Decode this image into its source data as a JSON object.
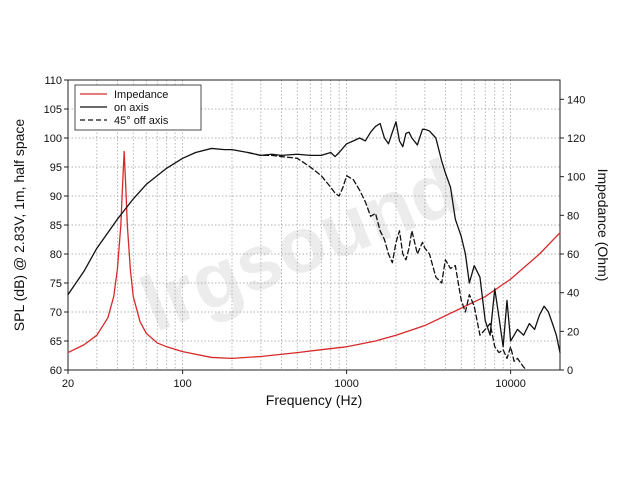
{
  "chart_data": {
    "type": "line",
    "xlabel": "Frequency (Hz)",
    "ylabel": "SPL (dB) @ 2.83V, 1m, half space",
    "y2label": "Impedance (Ohm)",
    "xscale": "log",
    "xlim": [
      20,
      20000
    ],
    "ylim": [
      60,
      110
    ],
    "y2lim": [
      0,
      150
    ],
    "xticks": [
      20,
      100,
      1000,
      10000
    ],
    "xtick_labels": [
      "20",
      "100",
      "1000",
      "10000"
    ],
    "yticks": [
      60,
      65,
      70,
      75,
      80,
      85,
      90,
      95,
      100,
      105,
      110
    ],
    "y2ticks": [
      0,
      20,
      40,
      60,
      80,
      100,
      120,
      140
    ],
    "grid": true,
    "legend_position": "top-left",
    "watermark": "lrgsound",
    "series": [
      {
        "name": "Impedance",
        "axis": "right",
        "color": "#d62a2a",
        "style": "solid",
        "x": [
          20,
          25,
          30,
          35,
          38,
          40,
          42,
          43,
          44,
          45,
          46,
          48,
          50,
          55,
          60,
          70,
          80,
          100,
          150,
          200,
          300,
          500,
          700,
          1000,
          1500,
          2000,
          3000,
          5000,
          7000,
          10000,
          15000,
          20000
        ],
        "y": [
          9,
          13,
          18,
          27,
          38,
          52,
          75,
          95,
          113,
          95,
          75,
          52,
          38,
          25,
          19,
          14,
          12,
          9.5,
          6.5,
          6,
          7,
          9,
          10.5,
          12,
          15,
          18,
          23,
          32,
          38,
          47,
          60,
          71
        ]
      },
      {
        "name": "on axis",
        "axis": "left",
        "color": "#111111",
        "style": "solid",
        "x": [
          20,
          25,
          30,
          40,
          50,
          60,
          80,
          100,
          120,
          150,
          180,
          200,
          250,
          300,
          350,
          400,
          500,
          600,
          700,
          800,
          850,
          900,
          1000,
          1100,
          1200,
          1300,
          1400,
          1500,
          1600,
          1700,
          1800,
          1900,
          2000,
          2100,
          2200,
          2300,
          2400,
          2500,
          2700,
          2900,
          3000,
          3200,
          3500,
          3800,
          4000,
          4300,
          4600,
          5000,
          5300,
          5600,
          6000,
          6500,
          7000,
          7500,
          8000,
          8500,
          9000,
          9500,
          10000,
          10500,
          11000,
          12000,
          13000,
          14000,
          15000,
          16000,
          17000,
          18000,
          19000,
          20000
        ],
        "y": [
          73,
          77,
          81,
          86,
          89.5,
          92,
          94.8,
          96.5,
          97.5,
          98.2,
          98,
          98,
          97.5,
          97,
          97.2,
          97,
          97.2,
          97,
          97,
          97.5,
          96.8,
          97.5,
          99,
          99.5,
          100,
          99.5,
          101,
          102,
          102.5,
          100,
          99,
          101,
          102.8,
          99.5,
          98.5,
          100.8,
          101,
          100,
          98.8,
          101.5,
          101.5,
          101.2,
          100,
          96,
          94,
          91.5,
          86,
          83,
          80,
          75,
          78,
          76,
          68.5,
          66,
          74,
          69,
          64,
          72,
          65,
          66,
          67,
          66,
          68,
          67,
          69.5,
          71,
          70,
          68,
          66,
          63
        ]
      },
      {
        "name": "45° off axis",
        "axis": "left",
        "color": "#111111",
        "style": "dashed",
        "x": [
          250,
          300,
          350,
          400,
          500,
          600,
          700,
          800,
          850,
          900,
          950,
          1000,
          1100,
          1200,
          1300,
          1400,
          1500,
          1600,
          1700,
          1800,
          1900,
          2000,
          2100,
          2200,
          2300,
          2400,
          2500,
          2700,
          2900,
          3000,
          3200,
          3500,
          3800,
          4000,
          4300,
          4600,
          5000,
          5300,
          5600,
          6000,
          6500,
          7000,
          7500,
          8000,
          8500,
          9000,
          9500,
          10000,
          10500,
          11000,
          12000,
          12500
        ],
        "y": [
          97.5,
          97,
          97,
          96.8,
          96.5,
          95,
          93.5,
          91.5,
          90.5,
          90,
          91.5,
          93.5,
          92.8,
          91,
          89,
          86.5,
          87,
          84,
          82.5,
          80,
          78.5,
          82,
          84,
          80,
          79,
          81,
          84,
          80,
          82,
          81,
          80,
          76,
          75,
          79,
          77.5,
          78,
          72,
          70,
          73,
          71,
          66,
          67,
          68,
          64,
          63,
          63.5,
          62,
          64,
          61.5,
          62,
          60.5,
          60
        ]
      }
    ]
  }
}
